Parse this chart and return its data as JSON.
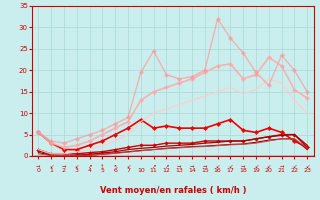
{
  "bg_color": "#caeeed",
  "grid_color": "#a8d8d8",
  "xlabel": "Vent moyen/en rafales ( km/h )",
  "xlim": [
    -0.5,
    21.5
  ],
  "ylim": [
    0,
    35
  ],
  "yticks": [
    0,
    5,
    10,
    15,
    20,
    25,
    30,
    35
  ],
  "xtick_positions": [
    0,
    1,
    2,
    3,
    4,
    5,
    6,
    7,
    8,
    9,
    10,
    11,
    12,
    13,
    14,
    15,
    16,
    17,
    18,
    19,
    20,
    21
  ],
  "xtick_labels": [
    "0",
    "1",
    "2",
    "3",
    "4",
    "5",
    "6",
    "7",
    "10",
    "11",
    "12",
    "13",
    "14",
    "15",
    "16",
    "17",
    "18",
    "19",
    "20",
    "21",
    "22",
    "23"
  ],
  "series": [
    {
      "comment": "bright red with diamonds - mid-range",
      "y": [
        5.5,
        3.0,
        1.5,
        1.5,
        2.5,
        3.5,
        5.0,
        6.5,
        8.5,
        6.5,
        7.0,
        6.5,
        6.5,
        6.5,
        7.5,
        8.5,
        6.0,
        5.5,
        6.5,
        5.5,
        3.5,
        2.0
      ],
      "color": "#ee0000",
      "lw": 1.2,
      "marker": "D",
      "ms": 2.2,
      "alpha": 1.0
    },
    {
      "comment": "medium red with diamonds - lower",
      "y": [
        1.5,
        0.5,
        0.5,
        0.5,
        0.8,
        1.0,
        1.5,
        2.0,
        2.5,
        2.5,
        3.0,
        3.0,
        3.0,
        3.5,
        3.5,
        3.5,
        3.5,
        4.0,
        4.5,
        5.0,
        5.0,
        2.0
      ],
      "color": "#cc0000",
      "lw": 1.0,
      "marker": "D",
      "ms": 1.8,
      "alpha": 1.0
    },
    {
      "comment": "dark red no marker - gradual rise",
      "y": [
        1.2,
        0.3,
        0.1,
        0.2,
        0.4,
        0.7,
        1.0,
        1.5,
        1.8,
        2.0,
        2.3,
        2.5,
        2.7,
        3.0,
        3.2,
        3.5,
        3.5,
        4.0,
        4.5,
        4.8,
        5.0,
        2.5
      ],
      "color": "#aa0000",
      "lw": 0.9,
      "marker": null,
      "ms": 0,
      "alpha": 1.0
    },
    {
      "comment": "very dark red - lowest, gradual",
      "y": [
        0.8,
        0.2,
        0.1,
        0.1,
        0.2,
        0.4,
        0.7,
        1.0,
        1.3,
        1.5,
        1.8,
        2.0,
        2.2,
        2.3,
        2.5,
        2.7,
        2.8,
        3.2,
        3.7,
        4.0,
        4.0,
        1.5
      ],
      "color": "#880000",
      "lw": 0.8,
      "marker": null,
      "ms": 0,
      "alpha": 1.0
    },
    {
      "comment": "light pink with diamonds - high curve",
      "y": [
        5.5,
        3.0,
        2.0,
        2.5,
        3.5,
        5.0,
        6.5,
        8.0,
        13.0,
        15.0,
        16.0,
        17.0,
        18.0,
        19.5,
        21.0,
        21.5,
        18.0,
        19.0,
        23.0,
        21.0,
        15.5,
        13.5
      ],
      "color": "#ffaaaa",
      "lw": 1.2,
      "marker": "D",
      "ms": 2.2,
      "alpha": 0.9
    },
    {
      "comment": "very light pink no marker - wide band top",
      "y": [
        1.5,
        0.5,
        0.5,
        1.0,
        1.5,
        2.5,
        3.5,
        5.0,
        8.0,
        10.0,
        11.0,
        12.0,
        13.0,
        14.0,
        15.0,
        16.0,
        14.5,
        15.5,
        18.0,
        17.0,
        13.0,
        10.0
      ],
      "color": "#ffcccc",
      "lw": 1.0,
      "marker": null,
      "ms": 0,
      "alpha": 0.85
    },
    {
      "comment": "pink with diamonds - spiky top",
      "y": [
        5.5,
        3.5,
        3.0,
        4.0,
        5.0,
        6.0,
        7.5,
        9.0,
        19.5,
        24.5,
        19.0,
        18.0,
        18.5,
        20.0,
        32.0,
        27.5,
        24.0,
        19.5,
        16.5,
        23.5,
        20.0,
        15.0
      ],
      "color": "#ff9999",
      "lw": 1.0,
      "marker": "D",
      "ms": 2.2,
      "alpha": 0.7
    },
    {
      "comment": "medium dark red no marker - near bottom",
      "y": [
        0.5,
        0.1,
        0.1,
        0.1,
        0.2,
        0.4,
        0.6,
        0.9,
        1.2,
        1.5,
        1.7,
        1.9,
        2.1,
        2.2,
        2.4,
        2.6,
        2.7,
        3.0,
        3.5,
        4.0,
        4.0,
        1.8
      ],
      "color": "#cc4444",
      "lw": 0.7,
      "marker": null,
      "ms": 0,
      "alpha": 1.0
    }
  ],
  "xlabel_color": "#cc0000",
  "tick_color": "#cc0000",
  "axis_color": "#cc0000",
  "wind_arrows": [
    "→",
    "↙",
    "→",
    "↙",
    "↗",
    "↑",
    "↖",
    "↙",
    "",
    "↗",
    "↗",
    "→",
    "→",
    "→",
    "↙",
    "↙",
    "→",
    "↙",
    "↙",
    "→",
    "↙",
    "↙"
  ]
}
